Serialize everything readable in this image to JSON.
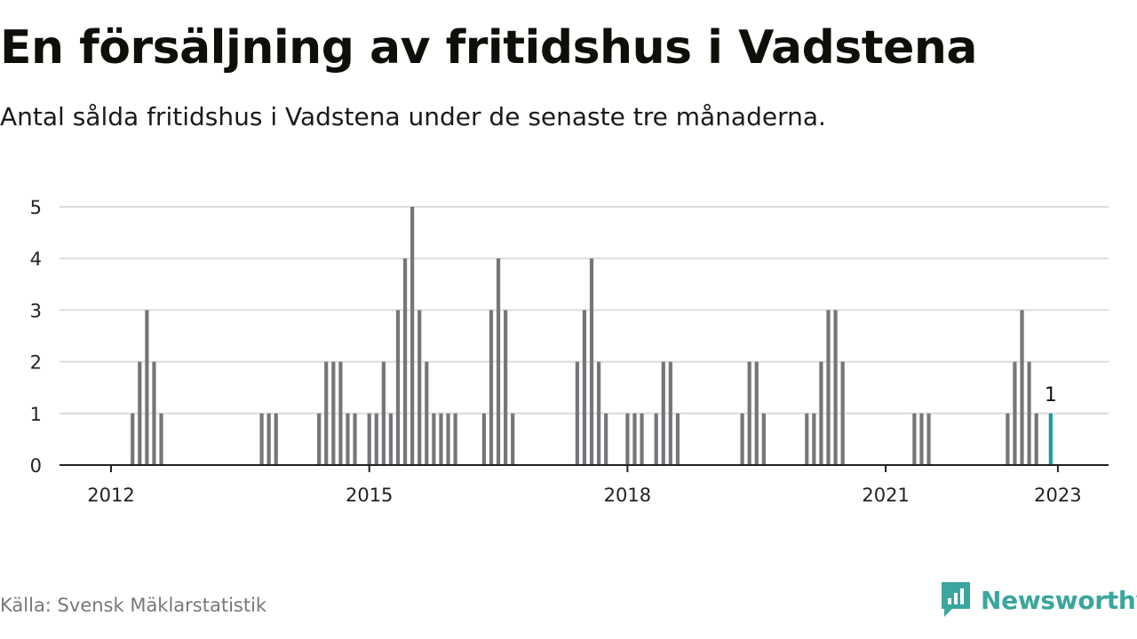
{
  "title": "En försäljning av fritidshus i Vadstena",
  "subtitle": "Antal sålda fritidshus i Vadstena under de senaste tre månaderna.",
  "source": "Källa: Svensk Mäklarstatistik",
  "brand": "Newsworthy",
  "colors": {
    "bar": "#76767a",
    "highlight": "#1a9e96",
    "grid": "#dcdcdc",
    "axis": "#222222",
    "brand": "#3aa69d"
  },
  "chart_data": {
    "type": "bar",
    "title": "En försäljning av fritidshus i Vadstena",
    "subtitle": "Antal sålda fritidshus i Vadstena under de senaste tre månaderna.",
    "xlabel": "",
    "ylabel": "",
    "ylim": [
      0,
      5
    ],
    "yticks": [
      0,
      1,
      2,
      3,
      4,
      5
    ],
    "grid": true,
    "x_ticks": [
      {
        "label": "2012",
        "date": "2012-01"
      },
      {
        "label": "2015",
        "date": "2015-01"
      },
      {
        "label": "2018",
        "date": "2018-01"
      },
      {
        "label": "2021",
        "date": "2021-01"
      },
      {
        "label": "2023",
        "date": "2023-01"
      }
    ],
    "x": [
      "2012-04",
      "2012-05",
      "2012-06",
      "2012-07",
      "2012-08",
      "2013-10",
      "2013-11",
      "2013-12",
      "2014-06",
      "2014-07",
      "2014-08",
      "2014-09",
      "2014-10",
      "2014-11",
      "2015-01",
      "2015-02",
      "2015-03",
      "2015-04",
      "2015-05",
      "2015-06",
      "2015-07",
      "2015-08",
      "2015-09",
      "2015-10",
      "2015-11",
      "2015-12",
      "2016-01",
      "2016-05",
      "2016-06",
      "2016-07",
      "2016-08",
      "2016-09",
      "2017-06",
      "2017-07",
      "2017-08",
      "2017-09",
      "2017-10",
      "2018-01",
      "2018-02",
      "2018-03",
      "2018-05",
      "2018-06",
      "2018-07",
      "2018-08",
      "2019-05",
      "2019-06",
      "2019-07",
      "2019-08",
      "2020-02",
      "2020-03",
      "2020-04",
      "2020-05",
      "2020-06",
      "2020-07",
      "2021-05",
      "2021-06",
      "2021-07",
      "2022-06",
      "2022-07",
      "2022-08",
      "2022-09",
      "2022-10",
      "2022-12"
    ],
    "values": [
      1,
      2,
      3,
      2,
      1,
      1,
      1,
      1,
      1,
      2,
      2,
      2,
      1,
      1,
      1,
      1,
      2,
      1,
      3,
      4,
      5,
      3,
      2,
      1,
      1,
      1,
      1,
      1,
      3,
      4,
      3,
      1,
      2,
      3,
      4,
      2,
      1,
      1,
      1,
      1,
      1,
      2,
      2,
      1,
      1,
      2,
      2,
      1,
      1,
      1,
      2,
      3,
      3,
      2,
      1,
      1,
      1,
      1,
      2,
      3,
      2,
      1,
      1
    ],
    "highlight": {
      "date": "2022-12",
      "value": 1,
      "label": "1"
    }
  }
}
